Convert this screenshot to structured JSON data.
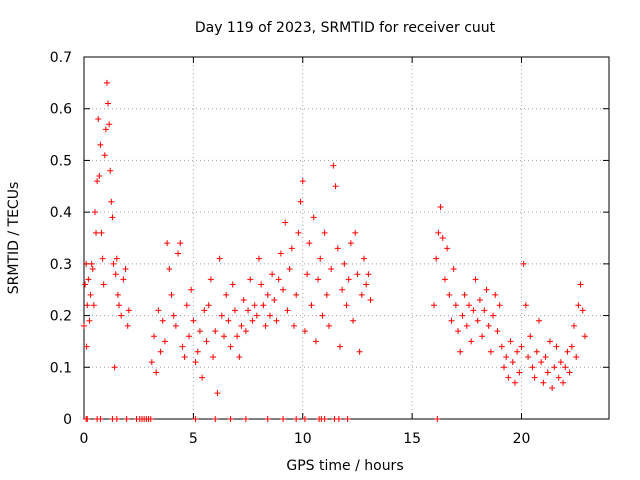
{
  "chart_data": {
    "type": "scatter",
    "title": "Day 119 of 2023, SRMTID for receiver cuut",
    "xlabel": "GPS time / hours",
    "ylabel": "SRMTID / TECUs",
    "xlim": [
      0,
      24
    ],
    "ylim": [
      0,
      0.7
    ],
    "grid": true,
    "marker": "+",
    "series_color": "#ff0000",
    "x_ticks": [
      {
        "value": 0,
        "label": "0"
      },
      {
        "value": 5,
        "label": "5"
      },
      {
        "value": 10,
        "label": "10"
      },
      {
        "value": 15,
        "label": "15"
      },
      {
        "value": 20,
        "label": "20"
      }
    ],
    "y_ticks": [
      {
        "value": 0,
        "label": "0"
      },
      {
        "value": 0.1,
        "label": "0.1"
      },
      {
        "value": 0.2,
        "label": "0.2"
      },
      {
        "value": 0.3,
        "label": "0.3"
      },
      {
        "value": 0.4,
        "label": "0.4"
      },
      {
        "value": 0.5,
        "label": "0.5"
      },
      {
        "value": 0.6,
        "label": "0.6"
      },
      {
        "value": 0.7,
        "label": "0.7"
      }
    ],
    "series": [
      {
        "name": "SRMTID",
        "points": [
          [
            0.0,
            0.18
          ],
          [
            0.05,
            0.26
          ],
          [
            0.1,
            0.3
          ],
          [
            0.12,
            0.14
          ],
          [
            0.15,
            0.22
          ],
          [
            0.2,
            0.27
          ],
          [
            0.25,
            0.19
          ],
          [
            0.3,
            0.24
          ],
          [
            0.35,
            0.3
          ],
          [
            0.4,
            0.29
          ],
          [
            0.45,
            0.22
          ],
          [
            0.5,
            0.4
          ],
          [
            0.55,
            0.36
          ],
          [
            0.6,
            0.46
          ],
          [
            0.65,
            0.58
          ],
          [
            0.7,
            0.47
          ],
          [
            0.75,
            0.53
          ],
          [
            0.8,
            0.36
          ],
          [
            0.85,
            0.31
          ],
          [
            0.9,
            0.26
          ],
          [
            0.95,
            0.51
          ],
          [
            1.0,
            0.56
          ],
          [
            1.05,
            0.65
          ],
          [
            1.1,
            0.61
          ],
          [
            1.15,
            0.57
          ],
          [
            1.2,
            0.48
          ],
          [
            1.25,
            0.42
          ],
          [
            1.3,
            0.39
          ],
          [
            1.35,
            0.3
          ],
          [
            1.4,
            0.1
          ],
          [
            1.45,
            0.28
          ],
          [
            1.5,
            0.31
          ],
          [
            1.55,
            0.24
          ],
          [
            1.6,
            0.22
          ],
          [
            1.7,
            0.2
          ],
          [
            1.8,
            0.27
          ],
          [
            1.9,
            0.29
          ],
          [
            2.0,
            0.18
          ],
          [
            2.05,
            0.21
          ],
          [
            3.1,
            0.11
          ],
          [
            3.2,
            0.16
          ],
          [
            3.3,
            0.09
          ],
          [
            3.4,
            0.21
          ],
          [
            3.5,
            0.13
          ],
          [
            3.6,
            0.19
          ],
          [
            3.7,
            0.15
          ],
          [
            3.8,
            0.34
          ],
          [
            3.9,
            0.29
          ],
          [
            4.0,
            0.24
          ],
          [
            4.1,
            0.2
          ],
          [
            4.2,
            0.18
          ],
          [
            4.3,
            0.32
          ],
          [
            4.4,
            0.34
          ],
          [
            4.5,
            0.14
          ],
          [
            4.6,
            0.12
          ],
          [
            4.7,
            0.22
          ],
          [
            4.8,
            0.16
          ],
          [
            4.9,
            0.25
          ],
          [
            5.0,
            0.19
          ],
          [
            5.1,
            0.11
          ],
          [
            5.2,
            0.13
          ],
          [
            5.3,
            0.17
          ],
          [
            5.4,
            0.08
          ],
          [
            5.5,
            0.21
          ],
          [
            5.6,
            0.15
          ],
          [
            5.7,
            0.22
          ],
          [
            5.8,
            0.27
          ],
          [
            5.9,
            0.12
          ],
          [
            6.0,
            0.17
          ],
          [
            6.1,
            0.05
          ],
          [
            6.2,
            0.31
          ],
          [
            6.3,
            0.2
          ],
          [
            6.4,
            0.16
          ],
          [
            6.5,
            0.24
          ],
          [
            6.6,
            0.19
          ],
          [
            6.7,
            0.14
          ],
          [
            6.8,
            0.26
          ],
          [
            6.9,
            0.21
          ],
          [
            7.0,
            0.16
          ],
          [
            7.1,
            0.12
          ],
          [
            7.2,
            0.18
          ],
          [
            7.3,
            0.23
          ],
          [
            7.4,
            0.17
          ],
          [
            7.5,
            0.21
          ],
          [
            7.6,
            0.27
          ],
          [
            7.7,
            0.19
          ],
          [
            7.8,
            0.22
          ],
          [
            7.9,
            0.2
          ],
          [
            8.0,
            0.31
          ],
          [
            8.1,
            0.26
          ],
          [
            8.2,
            0.22
          ],
          [
            8.3,
            0.18
          ],
          [
            8.4,
            0.24
          ],
          [
            8.5,
            0.2
          ],
          [
            8.6,
            0.28
          ],
          [
            8.7,
            0.23
          ],
          [
            8.8,
            0.19
          ],
          [
            8.9,
            0.27
          ],
          [
            9.0,
            0.32
          ],
          [
            9.1,
            0.25
          ],
          [
            9.2,
            0.38
          ],
          [
            9.3,
            0.21
          ],
          [
            9.4,
            0.29
          ],
          [
            9.5,
            0.33
          ],
          [
            9.6,
            0.18
          ],
          [
            9.7,
            0.24
          ],
          [
            9.8,
            0.36
          ],
          [
            9.9,
            0.42
          ],
          [
            10.0,
            0.46
          ],
          [
            10.1,
            0.17
          ],
          [
            10.2,
            0.28
          ],
          [
            10.3,
            0.34
          ],
          [
            10.4,
            0.22
          ],
          [
            10.5,
            0.39
          ],
          [
            10.6,
            0.15
          ],
          [
            10.7,
            0.27
          ],
          [
            10.8,
            0.31
          ],
          [
            10.9,
            0.2
          ],
          [
            11.0,
            0.36
          ],
          [
            11.1,
            0.24
          ],
          [
            11.2,
            0.18
          ],
          [
            11.3,
            0.29
          ],
          [
            11.4,
            0.49
          ],
          [
            11.5,
            0.45
          ],
          [
            11.6,
            0.33
          ],
          [
            11.7,
            0.14
          ],
          [
            11.8,
            0.25
          ],
          [
            11.9,
            0.3
          ],
          [
            12.0,
            0.22
          ],
          [
            12.1,
            0.27
          ],
          [
            12.2,
            0.34
          ],
          [
            12.3,
            0.19
          ],
          [
            12.4,
            0.36
          ],
          [
            12.5,
            0.28
          ],
          [
            12.6,
            0.13
          ],
          [
            12.7,
            0.24
          ],
          [
            12.8,
            0.31
          ],
          [
            12.9,
            0.26
          ],
          [
            13.0,
            0.28
          ],
          [
            13.1,
            0.23
          ],
          [
            16.0,
            0.22
          ],
          [
            16.1,
            0.31
          ],
          [
            16.2,
            0.36
          ],
          [
            16.3,
            0.41
          ],
          [
            16.4,
            0.35
          ],
          [
            16.5,
            0.27
          ],
          [
            16.6,
            0.33
          ],
          [
            16.7,
            0.24
          ],
          [
            16.8,
            0.19
          ],
          [
            16.9,
            0.29
          ],
          [
            17.0,
            0.22
          ],
          [
            17.1,
            0.17
          ],
          [
            17.2,
            0.13
          ],
          [
            17.3,
            0.2
          ],
          [
            17.4,
            0.24
          ],
          [
            17.5,
            0.18
          ],
          [
            17.6,
            0.22
          ],
          [
            17.7,
            0.15
          ],
          [
            17.8,
            0.21
          ],
          [
            17.9,
            0.27
          ],
          [
            18.0,
            0.19
          ],
          [
            18.1,
            0.23
          ],
          [
            18.2,
            0.16
          ],
          [
            18.3,
            0.21
          ],
          [
            18.4,
            0.25
          ],
          [
            18.5,
            0.18
          ],
          [
            18.6,
            0.13
          ],
          [
            18.7,
            0.2
          ],
          [
            18.8,
            0.24
          ],
          [
            18.9,
            0.17
          ],
          [
            19.0,
            0.22
          ],
          [
            19.1,
            0.14
          ],
          [
            19.2,
            0.1
          ],
          [
            19.3,
            0.12
          ],
          [
            19.4,
            0.08
          ],
          [
            19.5,
            0.15
          ],
          [
            19.6,
            0.11
          ],
          [
            19.7,
            0.07
          ],
          [
            19.8,
            0.13
          ],
          [
            19.9,
            0.09
          ],
          [
            20.0,
            0.14
          ],
          [
            20.1,
            0.3
          ],
          [
            20.2,
            0.22
          ],
          [
            20.3,
            0.12
          ],
          [
            20.4,
            0.16
          ],
          [
            20.5,
            0.1
          ],
          [
            20.6,
            0.08
          ],
          [
            20.7,
            0.13
          ],
          [
            20.8,
            0.19
          ],
          [
            20.9,
            0.11
          ],
          [
            21.0,
            0.07
          ],
          [
            21.1,
            0.12
          ],
          [
            21.2,
            0.09
          ],
          [
            21.3,
            0.15
          ],
          [
            21.4,
            0.06
          ],
          [
            21.5,
            0.1
          ],
          [
            21.6,
            0.14
          ],
          [
            21.7,
            0.08
          ],
          [
            21.8,
            0.11
          ],
          [
            21.9,
            0.07
          ],
          [
            22.0,
            0.1
          ],
          [
            22.1,
            0.13
          ],
          [
            22.2,
            0.09
          ],
          [
            22.3,
            0.14
          ],
          [
            22.4,
            0.18
          ],
          [
            22.5,
            0.12
          ],
          [
            22.6,
            0.22
          ],
          [
            22.7,
            0.26
          ],
          [
            22.8,
            0.21
          ],
          [
            22.9,
            0.16
          ]
        ]
      }
    ],
    "zero_ticks": [
      0.1,
      0.15,
      0.6,
      0.75,
      1.3,
      1.5,
      1.95,
      2.4,
      2.55,
      2.65,
      2.75,
      2.85,
      2.95,
      3.05,
      5.1,
      6.0,
      6.7,
      7.4,
      8.4,
      9.1,
      9.7,
      10.1,
      10.75,
      10.85,
      11.0,
      11.45,
      11.65,
      12.05,
      16.15
    ]
  }
}
